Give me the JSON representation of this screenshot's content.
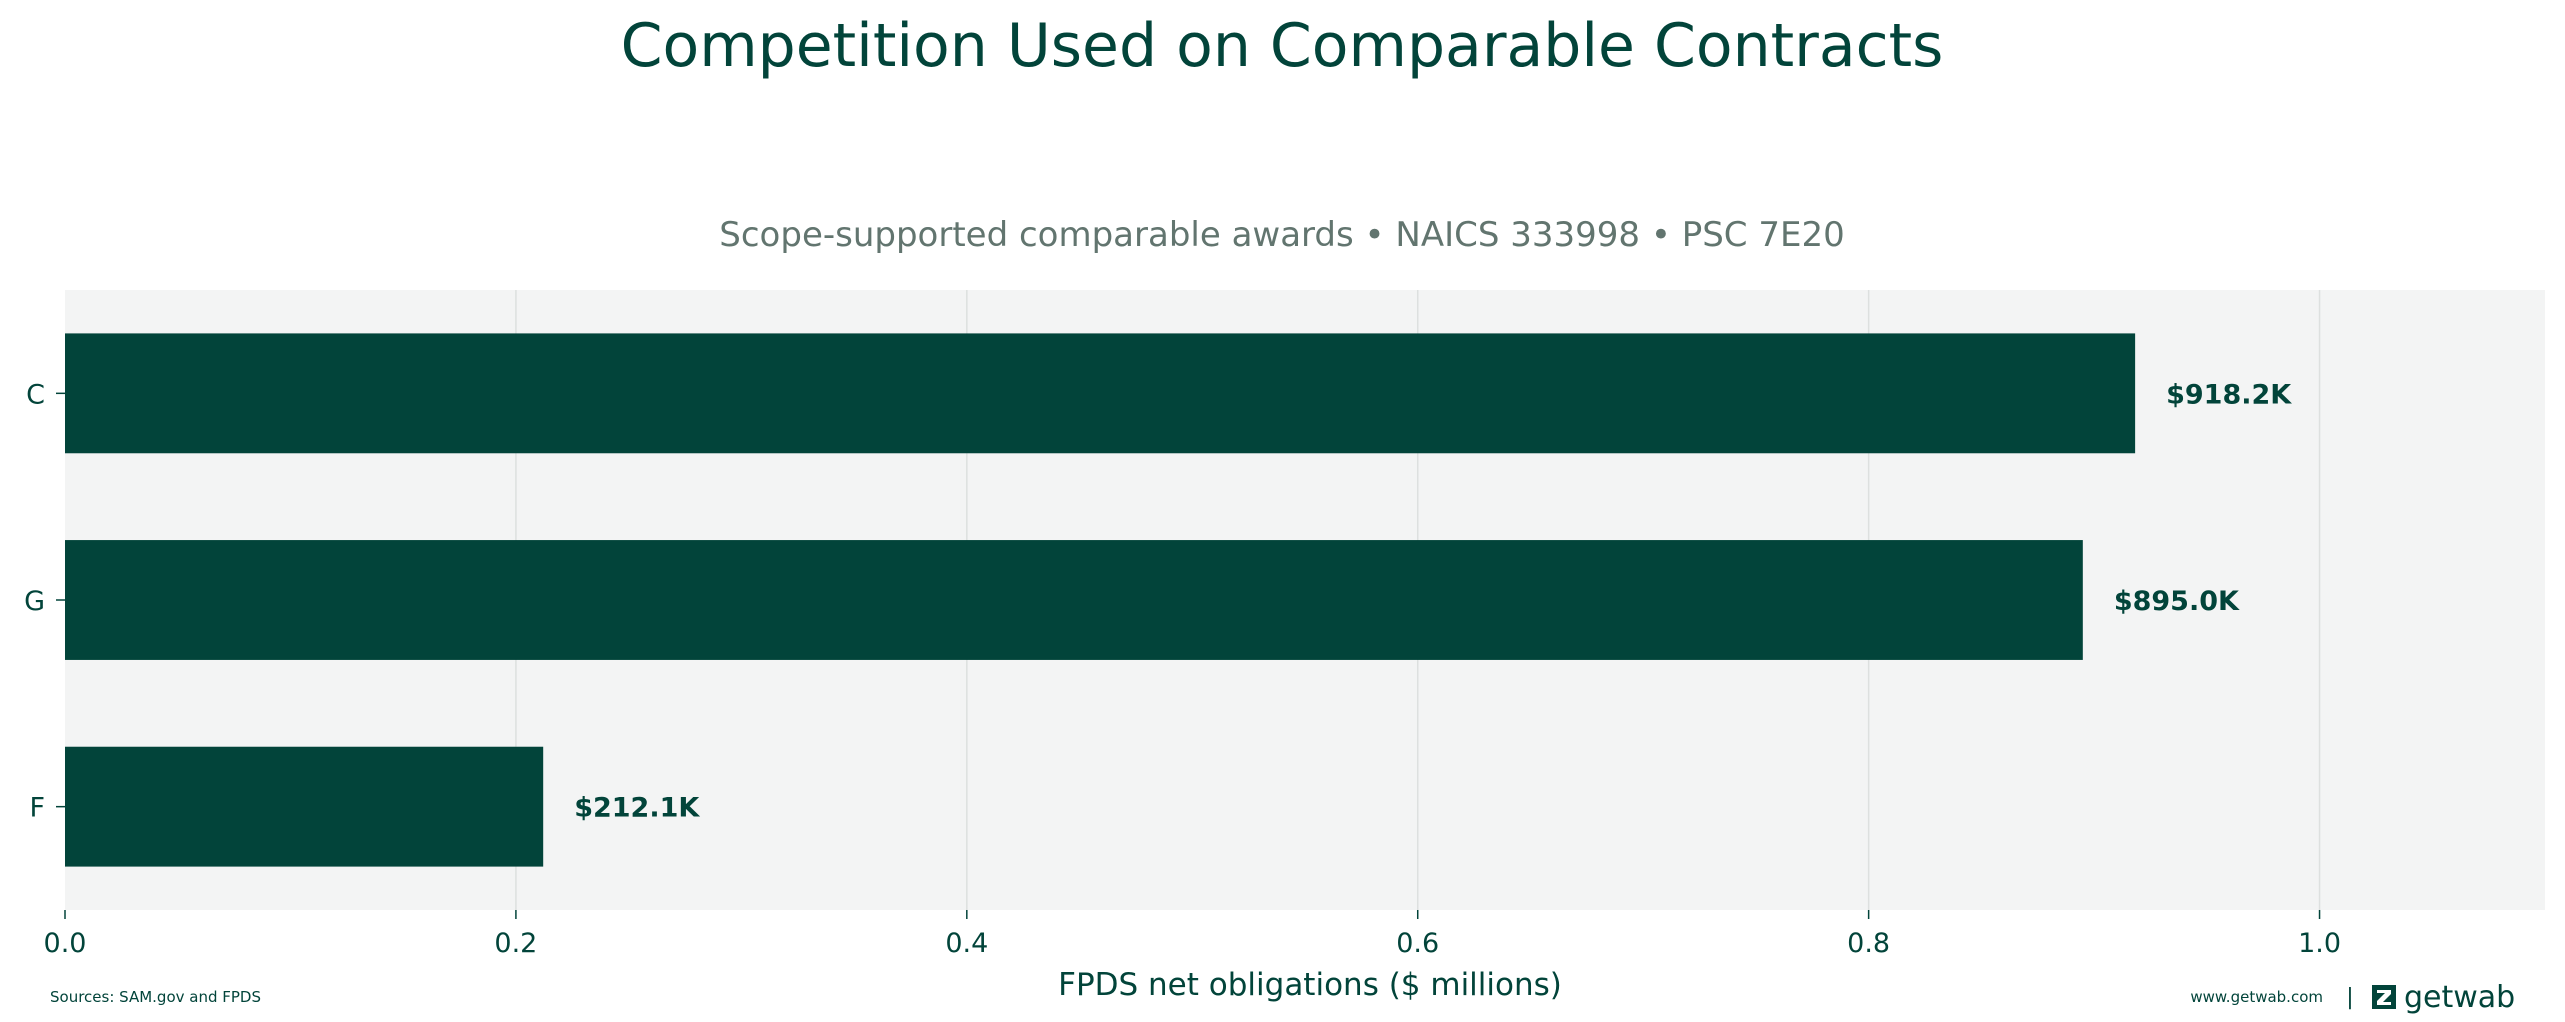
{
  "chart_data": {
    "type": "bar",
    "orientation": "horizontal",
    "title": "Competition Used on Comparable Contracts",
    "subtitle": "Scope-supported comparable awards • NAICS 333998 • PSC 7E20",
    "xlabel": "FPDS net obligations ($ millions)",
    "ylabel": "",
    "categories": [
      "C",
      "G",
      "F"
    ],
    "values": [
      0.9182,
      0.895,
      0.2121
    ],
    "data_labels": [
      "$918.2K",
      "$895.0K",
      "$212.1K"
    ],
    "xlim": [
      0,
      1.1
    ],
    "xticks": [
      "0.0",
      "0.2",
      "0.4",
      "0.6",
      "0.8",
      "1.0"
    ],
    "xtick_values": [
      0,
      0.2,
      0.4,
      0.6,
      0.8,
      1.0
    ],
    "grid": "vertical",
    "bar_color": "#02443a",
    "plot_background": "#f3f4f4"
  },
  "footer": {
    "sources": "Sources: SAM.gov and FPDS",
    "website": "www.getwab.com",
    "separator": "|",
    "brand": "getwab",
    "brand_icon": "getwab-logo-icon"
  }
}
